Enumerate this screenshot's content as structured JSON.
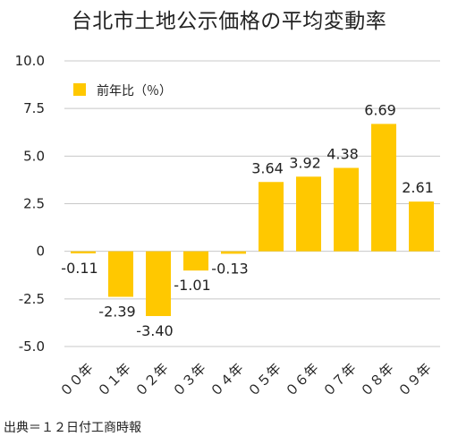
{
  "chart_data": {
    "type": "bar",
    "title": "台北市土地公示価格の平均変動率",
    "categories": [
      "００年",
      "０１年",
      "０２年",
      "０３年",
      "０４年",
      "０５年",
      "０６年",
      "０７年",
      "０８年",
      "０９年"
    ],
    "series": [
      {
        "name": "前年比（％）",
        "values": [
          -0.11,
          -2.39,
          -3.4,
          -1.01,
          -0.13,
          3.64,
          3.92,
          4.38,
          6.69,
          2.61
        ],
        "value_labels": [
          "-0.11",
          "-2.39",
          "-3.40",
          "-1.01",
          "-0.13",
          "3.64",
          "3.92",
          "4.38",
          "6.69",
          "2.61"
        ]
      }
    ],
    "ylim": [
      -5,
      10
    ],
    "yticks": [
      10,
      7.5,
      5,
      2.5,
      0,
      -2.5,
      -5
    ],
    "ytick_labels": [
      "10.0",
      "7.5",
      "5.0",
      "2.5",
      "0",
      "-2.5",
      "-5.0"
    ],
    "grid": true,
    "legend_position": "top-left",
    "bar_color": "#FFC800",
    "grid_color": "#c8c8c8",
    "source": "出典＝１２日付工商時報"
  }
}
